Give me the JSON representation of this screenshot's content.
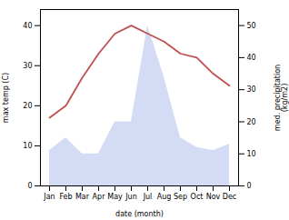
{
  "chart_data": {
    "type": "line",
    "xlabel": "date (month)",
    "ylabel": "max temp (C)",
    "y2label": "med. precipitation\n(kg/m2)",
    "categories": [
      "Jan",
      "Feb",
      "Mar",
      "Apr",
      "May",
      "Jun",
      "Jul",
      "Aug",
      "Sep",
      "Oct",
      "Nov",
      "Dec"
    ],
    "series": [
      {
        "name": "med. precipitation\n(kg/m2)",
        "type": "area",
        "axis": "y2",
        "color": "#c5cff0",
        "values": [
          11,
          15,
          10,
          10,
          20,
          20,
          50,
          34,
          15,
          12,
          11,
          13
        ]
      },
      {
        "name": "max temp (C)",
        "type": "line",
        "color": "#c0504d",
        "values": [
          17,
          20,
          27,
          33,
          38,
          40,
          38,
          36,
          33,
          32,
          28,
          25
        ]
      }
    ],
    "ylim": [
      0,
      44
    ],
    "yticks": [
      0,
      10,
      20,
      30,
      40
    ],
    "y2lim": [
      0,
      55
    ],
    "y2ticks": [
      0,
      10,
      20,
      30,
      40,
      50
    ]
  }
}
